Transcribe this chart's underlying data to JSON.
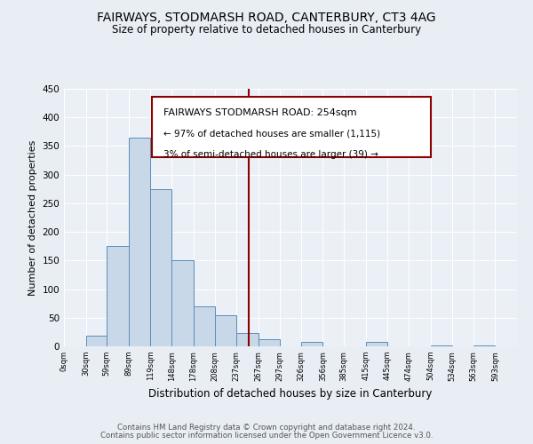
{
  "title": "FAIRWAYS, STODMARSH ROAD, CANTERBURY, CT3 4AG",
  "subtitle": "Size of property relative to detached houses in Canterbury",
  "xlabel": "Distribution of detached houses by size in Canterbury",
  "ylabel": "Number of detached properties",
  "bar_left_edges": [
    0,
    30,
    59,
    89,
    119,
    148,
    178,
    208,
    237,
    267,
    297,
    326,
    356,
    385,
    415,
    445,
    474,
    504,
    534,
    563
  ],
  "bar_widths": [
    30,
    29,
    30,
    30,
    29,
    30,
    30,
    29,
    30,
    30,
    29,
    30,
    29,
    30,
    30,
    29,
    30,
    30,
    29,
    30
  ],
  "bar_heights": [
    0,
    18,
    176,
    365,
    274,
    151,
    70,
    55,
    23,
    12,
    0,
    7,
    0,
    0,
    8,
    0,
    0,
    2,
    0,
    1
  ],
  "bar_color": "#c8d8e8",
  "bar_edge_color": "#5b8db8",
  "xlim": [
    0,
    623
  ],
  "ylim": [
    0,
    450
  ],
  "yticks": [
    0,
    50,
    100,
    150,
    200,
    250,
    300,
    350,
    400,
    450
  ],
  "xtick_labels": [
    "0sqm",
    "30sqm",
    "59sqm",
    "89sqm",
    "119sqm",
    "148sqm",
    "178sqm",
    "208sqm",
    "237sqm",
    "267sqm",
    "297sqm",
    "326sqm",
    "356sqm",
    "385sqm",
    "415sqm",
    "445sqm",
    "474sqm",
    "504sqm",
    "534sqm",
    "563sqm",
    "593sqm"
  ],
  "xtick_positions": [
    0,
    30,
    59,
    89,
    119,
    148,
    178,
    208,
    237,
    267,
    297,
    326,
    356,
    385,
    415,
    445,
    474,
    504,
    534,
    563,
    593
  ],
  "property_line_x": 254,
  "ann_line1": "FAIRWAYS STODMARSH ROAD: 254sqm",
  "ann_line2": "← 97% of detached houses are smaller (1,115)",
  "ann_line3": "3% of semi-detached houses are larger (39) →",
  "footer_line1": "Contains HM Land Registry data © Crown copyright and database right 2024.",
  "footer_line2": "Contains public sector information licensed under the Open Government Licence v3.0.",
  "bg_color": "#e8eef4",
  "plot_bg_color": "#eaf0f6",
  "grid_color": "#ffffff",
  "ann_box_color": "#ffffff",
  "ann_edge_color": "#8b0000",
  "vline_color": "#8b0000"
}
